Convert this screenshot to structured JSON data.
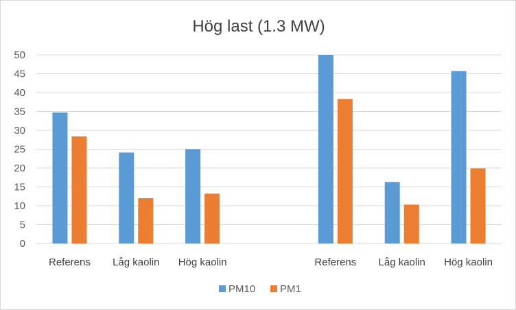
{
  "chart_data": {
    "type": "bar",
    "title": "Hög last (1.3 MW)",
    "xlabel": "",
    "ylabel": "",
    "ylim": [
      0,
      50
    ],
    "yticks": [
      0,
      5,
      10,
      15,
      20,
      25,
      30,
      35,
      40,
      45,
      50
    ],
    "grid": true,
    "legend_position": "bottom",
    "categories": [
      "Referens",
      "Låg kaolin",
      "Hög kaolin",
      "",
      "Referens",
      "Låg kaolin",
      "Hög kaolin"
    ],
    "series": [
      {
        "name": "PM10",
        "color": "#5b9bd5",
        "values": [
          34.7,
          24.1,
          25.0,
          null,
          50.0,
          16.3,
          45.7
        ]
      },
      {
        "name": "PM1",
        "color": "#ed7d31",
        "values": [
          28.4,
          12.0,
          13.2,
          null,
          38.3,
          10.3,
          19.9
        ]
      }
    ]
  }
}
